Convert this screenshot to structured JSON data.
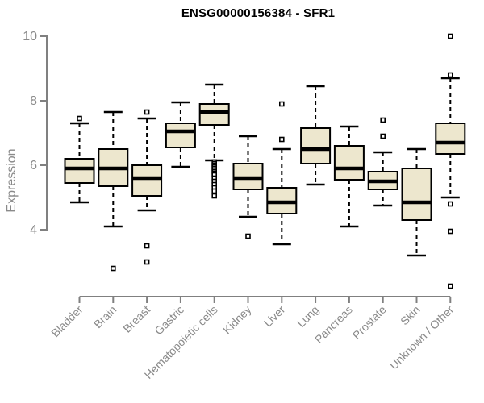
{
  "chart_data": {
    "type": "boxplot",
    "title": "ENSG00000156384 - SFR1",
    "ylabel": "Expression",
    "xlabel": "",
    "ylim": [
      4,
      10
    ],
    "yticks": [
      4,
      6,
      8,
      10
    ],
    "grid": false,
    "legend": "none",
    "categories": [
      "Bladder",
      "Brain",
      "Breast",
      "Gastric",
      "Hematopoietic cells",
      "Kidney",
      "Liver",
      "Lung",
      "Pancreas",
      "Prostate",
      "Skin",
      "Unknown / Other"
    ],
    "boxes": [
      {
        "category": "Bladder",
        "low": 4.85,
        "q1": 5.45,
        "median": 5.9,
        "q3": 6.2,
        "high": 7.3,
        "outliers": [
          7.45
        ]
      },
      {
        "category": "Brain",
        "low": 4.1,
        "q1": 5.35,
        "median": 5.9,
        "q3": 6.5,
        "high": 7.65,
        "outliers": [
          2.8
        ]
      },
      {
        "category": "Breast",
        "low": 4.6,
        "q1": 5.05,
        "median": 5.6,
        "q3": 6.0,
        "high": 7.45,
        "outliers": [
          7.65,
          3.5,
          3.0
        ]
      },
      {
        "category": "Gastric",
        "low": 5.95,
        "q1": 6.55,
        "median": 7.05,
        "q3": 7.3,
        "high": 7.95,
        "outliers": []
      },
      {
        "category": "Hematopoietic cells",
        "low": 6.15,
        "q1": 7.25,
        "median": 7.65,
        "q3": 7.9,
        "high": 8.5,
        "outliers": [
          6.1,
          6.05,
          6.0,
          5.95,
          5.9,
          5.85,
          5.8,
          5.75,
          5.7,
          5.6,
          5.5,
          5.4,
          5.3,
          5.2,
          5.05
        ]
      },
      {
        "category": "Kidney",
        "low": 4.4,
        "q1": 5.25,
        "median": 5.6,
        "q3": 6.05,
        "high": 6.9,
        "outliers": [
          3.8
        ]
      },
      {
        "category": "Liver",
        "low": 3.55,
        "q1": 4.5,
        "median": 4.85,
        "q3": 5.3,
        "high": 6.5,
        "outliers": [
          7.9,
          6.8
        ]
      },
      {
        "category": "Lung",
        "low": 5.4,
        "q1": 6.05,
        "median": 6.5,
        "q3": 7.15,
        "high": 8.45,
        "outliers": []
      },
      {
        "category": "Pancreas",
        "low": 4.1,
        "q1": 5.55,
        "median": 5.9,
        "q3": 6.6,
        "high": 7.2,
        "outliers": []
      },
      {
        "category": "Prostate",
        "low": 4.75,
        "q1": 5.25,
        "median": 5.5,
        "q3": 5.8,
        "high": 6.4,
        "outliers": [
          7.4,
          6.9
        ]
      },
      {
        "category": "Skin",
        "low": 3.2,
        "q1": 4.3,
        "median": 4.85,
        "q3": 5.9,
        "high": 6.5,
        "outliers": []
      },
      {
        "category": "Unknown / Other",
        "low": 5.0,
        "q1": 6.35,
        "median": 6.7,
        "q3": 7.3,
        "high": 8.7,
        "outliers": [
          10.0,
          8.8,
          4.8,
          3.95,
          2.25
        ]
      }
    ],
    "colors": {
      "box_fill": "#EDE7CE",
      "box_border": "#000000",
      "median": "#000000",
      "whisker": "#000000",
      "outlier_stroke": "#000000",
      "outlier_fill": "#ffffff",
      "axis_line": "#808080",
      "axis_text": "#8a8a8a",
      "title_text": "#000000"
    }
  }
}
